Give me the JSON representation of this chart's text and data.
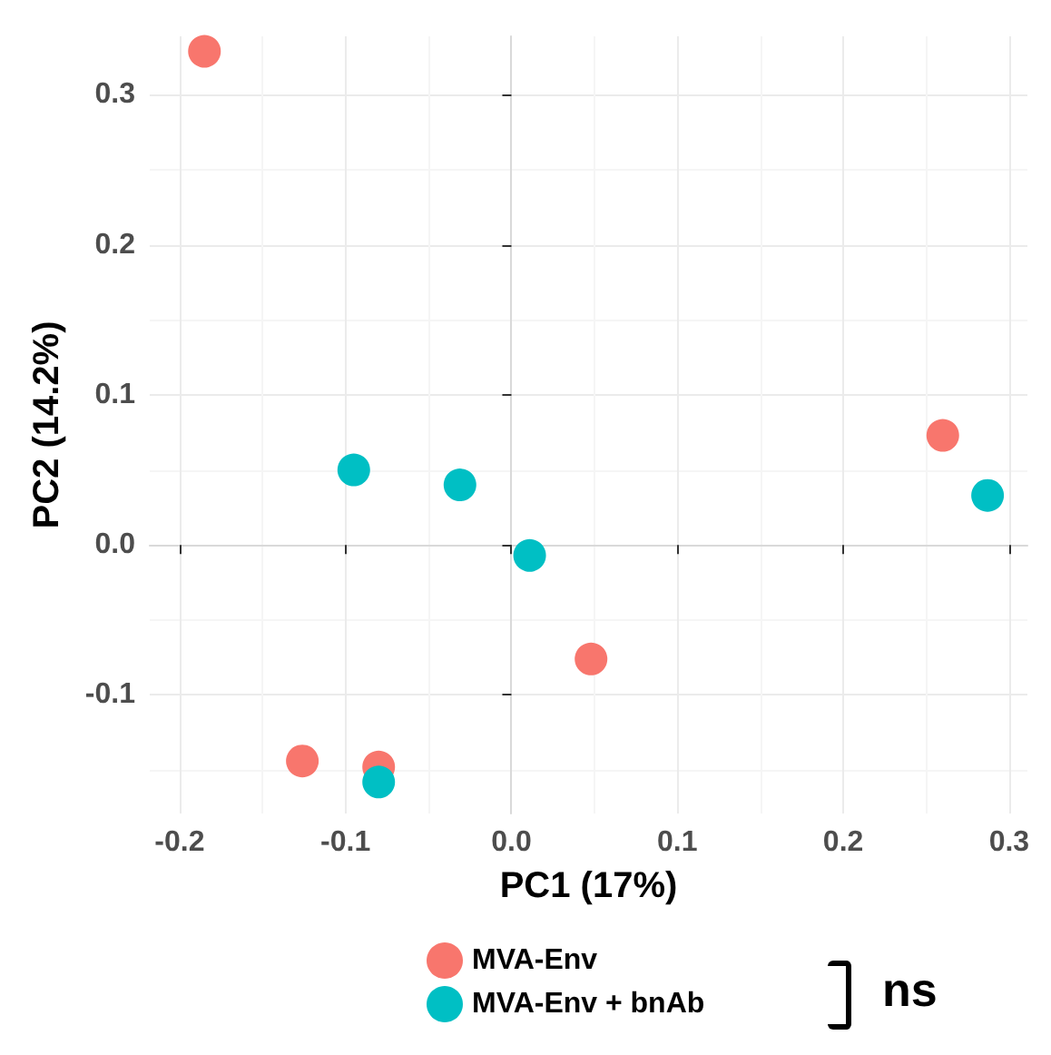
{
  "chart_data": {
    "type": "scatter",
    "xlabel": "PC1 (17%)",
    "ylabel": "PC2 (14.2%)",
    "xlim": [
      -0.218,
      0.311
    ],
    "ylim": [
      -0.179,
      0.339
    ],
    "xticks": [
      -0.2,
      -0.1,
      {
        "value": 0,
        "label": "0.0"
      },
      0.1,
      0.2,
      0.3
    ],
    "yticks": [
      -0.1,
      {
        "value": 0,
        "label": "0.0"
      },
      0.1,
      0.2,
      0.3
    ],
    "grid": true,
    "legend": "bottom",
    "marker": "circle",
    "series": [
      {
        "name": "MVA-Env",
        "color": "#f8766d",
        "x": [
          -0.185,
          -0.126,
          -0.08,
          0.048,
          0.26
        ],
        "values": [
          0.329,
          -0.144,
          -0.148,
          -0.076,
          0.073
        ]
      },
      {
        "name": "MVA-Env + bnAb",
        "color": "#00bfc4",
        "x": [
          -0.095,
          -0.031,
          0.011,
          -0.08,
          0.287
        ],
        "values": [
          0.05,
          0.04,
          -0.007,
          -0.158,
          0.033
        ]
      }
    ],
    "annotations": [
      "ns"
    ]
  }
}
